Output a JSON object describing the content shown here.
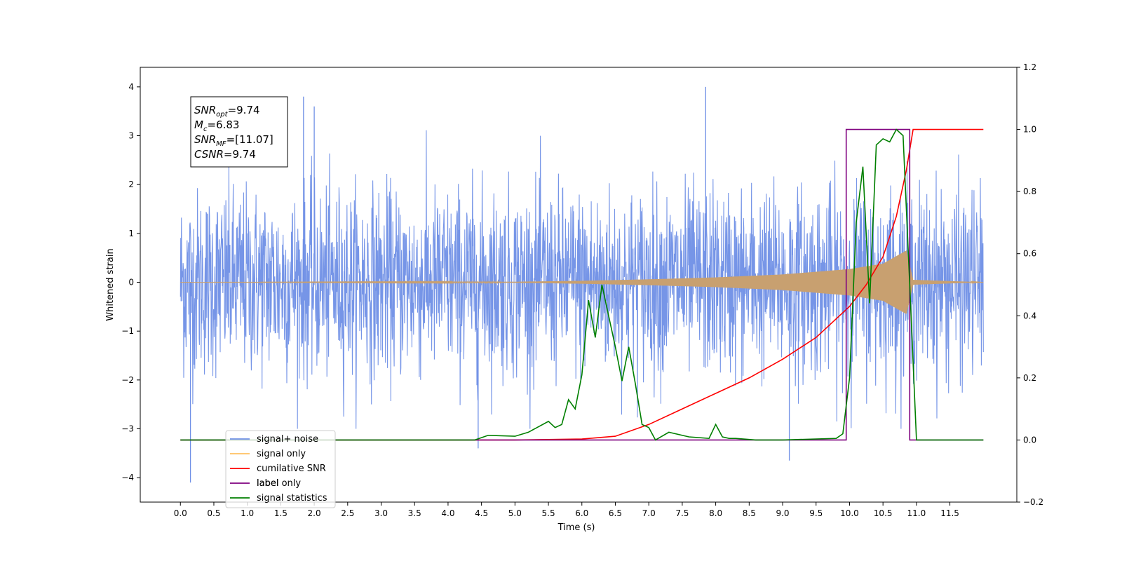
{
  "chart_data": {
    "type": "line",
    "xlabel": "Time (s)",
    "ylabel_left": "Whitened strain",
    "ylabel_right": "",
    "xlim": [
      -0.6,
      12.5
    ],
    "ylim_left": [
      -4.5,
      4.4
    ],
    "ylim_right": [
      -0.2,
      1.2
    ],
    "x_ticks": [
      "0.0",
      "0.5",
      "1.0",
      "1.5",
      "2.0",
      "2.5",
      "3.0",
      "3.5",
      "4.0",
      "4.5",
      "5.0",
      "5.5",
      "6.0",
      "6.5",
      "7.0",
      "7.5",
      "8.0",
      "8.5",
      "9.0",
      "9.5",
      "10.0",
      "10.5",
      "11.0",
      "11.5"
    ],
    "y_ticks_left": [
      "4",
      "3",
      "2",
      "1",
      "0",
      "−1",
      "−2",
      "−3",
      "−4"
    ],
    "y_ticks_right": [
      "1.2",
      "1.0",
      "0.8",
      "0.6",
      "0.4",
      "0.2",
      "0.0",
      "−0.2"
    ],
    "grid": false,
    "annotation": {
      "lines": [
        {
          "name": "SNR",
          "sub": "opt",
          "value": "=9.74"
        },
        {
          "name": "M",
          "sub": "c",
          "value": "=6.83"
        },
        {
          "name": "SNR",
          "sub": "MF",
          "value": "=[11.07]"
        },
        {
          "name": "CSNR",
          "sub": "",
          "value": "=9.74"
        }
      ]
    },
    "legend": {
      "placement": "lower-left",
      "entries": [
        {
          "label": "signal+ noise",
          "color": "#6f8fe6"
        },
        {
          "label": "signal only",
          "color": "#ffc060"
        },
        {
          "label": "cumilative SNR",
          "color": "#ff0000"
        },
        {
          "label": "label",
          "color": "#7f007f"
        },
        {
          "label": "signal statistics",
          "color": "#007f00"
        }
      ],
      "hidden_label": "label only"
    },
    "series": [
      {
        "name": "signal+ noise",
        "axis": "left",
        "color": "#6f8fe6",
        "description": "Gaussian whitened noise with std ~1 spanning 0 to 12 s",
        "x_range": [
          0.0,
          12.0
        ],
        "envelope": [
          -2.4,
          2.4
        ],
        "extreme_peaks": [
          [
            1.84,
            3.8
          ],
          [
            2.0,
            3.6
          ],
          [
            7.85,
            4.0
          ],
          [
            0.15,
            -4.1
          ],
          [
            9.1,
            -3.65
          ],
          [
            4.45,
            -3.4
          ]
        ]
      },
      {
        "name": "signal only",
        "axis": "left",
        "color": "#c8a070",
        "description": "chirp waveform growing in amplitude until merger",
        "x": [
          0.0,
          5.0,
          6.0,
          7.0,
          8.0,
          9.0,
          10.0,
          10.5,
          10.85,
          10.95,
          12.0
        ],
        "amplitude": [
          0.0,
          0.01,
          0.03,
          0.06,
          0.1,
          0.16,
          0.27,
          0.38,
          0.65,
          0.05,
          0.0
        ]
      },
      {
        "name": "cumilative SNR",
        "axis": "right",
        "color": "#ff0000",
        "x": [
          0.0,
          5.0,
          6.0,
          6.5,
          7.0,
          7.5,
          8.0,
          8.5,
          9.0,
          9.5,
          10.0,
          10.25,
          10.5,
          10.7,
          10.85,
          10.95,
          12.0
        ],
        "values": [
          0.0,
          0.0,
          0.003,
          0.012,
          0.05,
          0.1,
          0.15,
          0.2,
          0.26,
          0.33,
          0.43,
          0.5,
          0.59,
          0.72,
          0.87,
          1.0,
          1.0
        ]
      },
      {
        "name": "label",
        "axis": "right",
        "color": "#7f007f",
        "x": [
          0.0,
          9.95,
          9.95,
          10.9,
          10.9,
          12.0
        ],
        "values": [
          0.0,
          0.0,
          1.0,
          1.0,
          0.0,
          0.0
        ]
      },
      {
        "name": "signal statistics",
        "axis": "right",
        "color": "#007f00",
        "x": [
          0.0,
          3.5,
          4.4,
          4.6,
          5.0,
          5.2,
          5.5,
          5.6,
          5.7,
          5.8,
          5.9,
          6.0,
          6.1,
          6.2,
          6.3,
          6.4,
          6.5,
          6.6,
          6.7,
          6.8,
          6.9,
          7.0,
          7.1,
          7.3,
          7.6,
          7.9,
          8.0,
          8.1,
          8.2,
          8.3,
          8.6,
          9.0,
          9.8,
          9.9,
          10.0,
          10.1,
          10.2,
          10.3,
          10.4,
          10.5,
          10.6,
          10.7,
          10.8,
          10.9,
          11.0,
          12.0
        ],
        "values": [
          0.0,
          0.0,
          0.0,
          0.015,
          0.012,
          0.025,
          0.06,
          0.04,
          0.05,
          0.13,
          0.1,
          0.21,
          0.45,
          0.33,
          0.5,
          0.4,
          0.3,
          0.19,
          0.3,
          0.18,
          0.05,
          0.04,
          0.0,
          0.025,
          0.01,
          0.005,
          0.05,
          0.01,
          0.005,
          0.005,
          0.0,
          0.0,
          0.005,
          0.02,
          0.2,
          0.7,
          0.88,
          0.44,
          0.95,
          0.97,
          0.96,
          1.0,
          0.98,
          0.5,
          0.0,
          0.0
        ]
      }
    ]
  }
}
